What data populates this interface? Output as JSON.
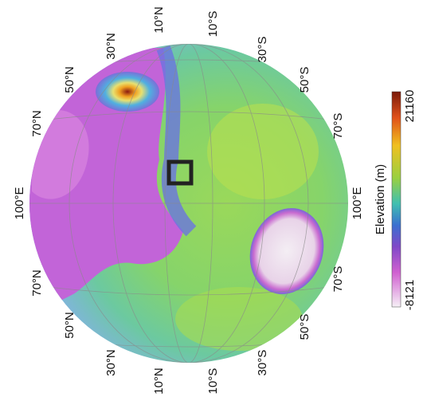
{
  "graticule_labels": {
    "top": [
      "70°N",
      "50°N",
      "30°N",
      "10°N",
      "10°S",
      "30°S",
      "50°S",
      "70°S"
    ],
    "bottom": [
      "70°N",
      "50°N",
      "30°N",
      "10°N",
      "10°S",
      "30°S",
      "50°S",
      "70°S"
    ],
    "left": "100°E",
    "right": "100°E"
  },
  "colorbar": {
    "label": "Elevation (m)",
    "max": "21160",
    "min": "-8121"
  }
}
